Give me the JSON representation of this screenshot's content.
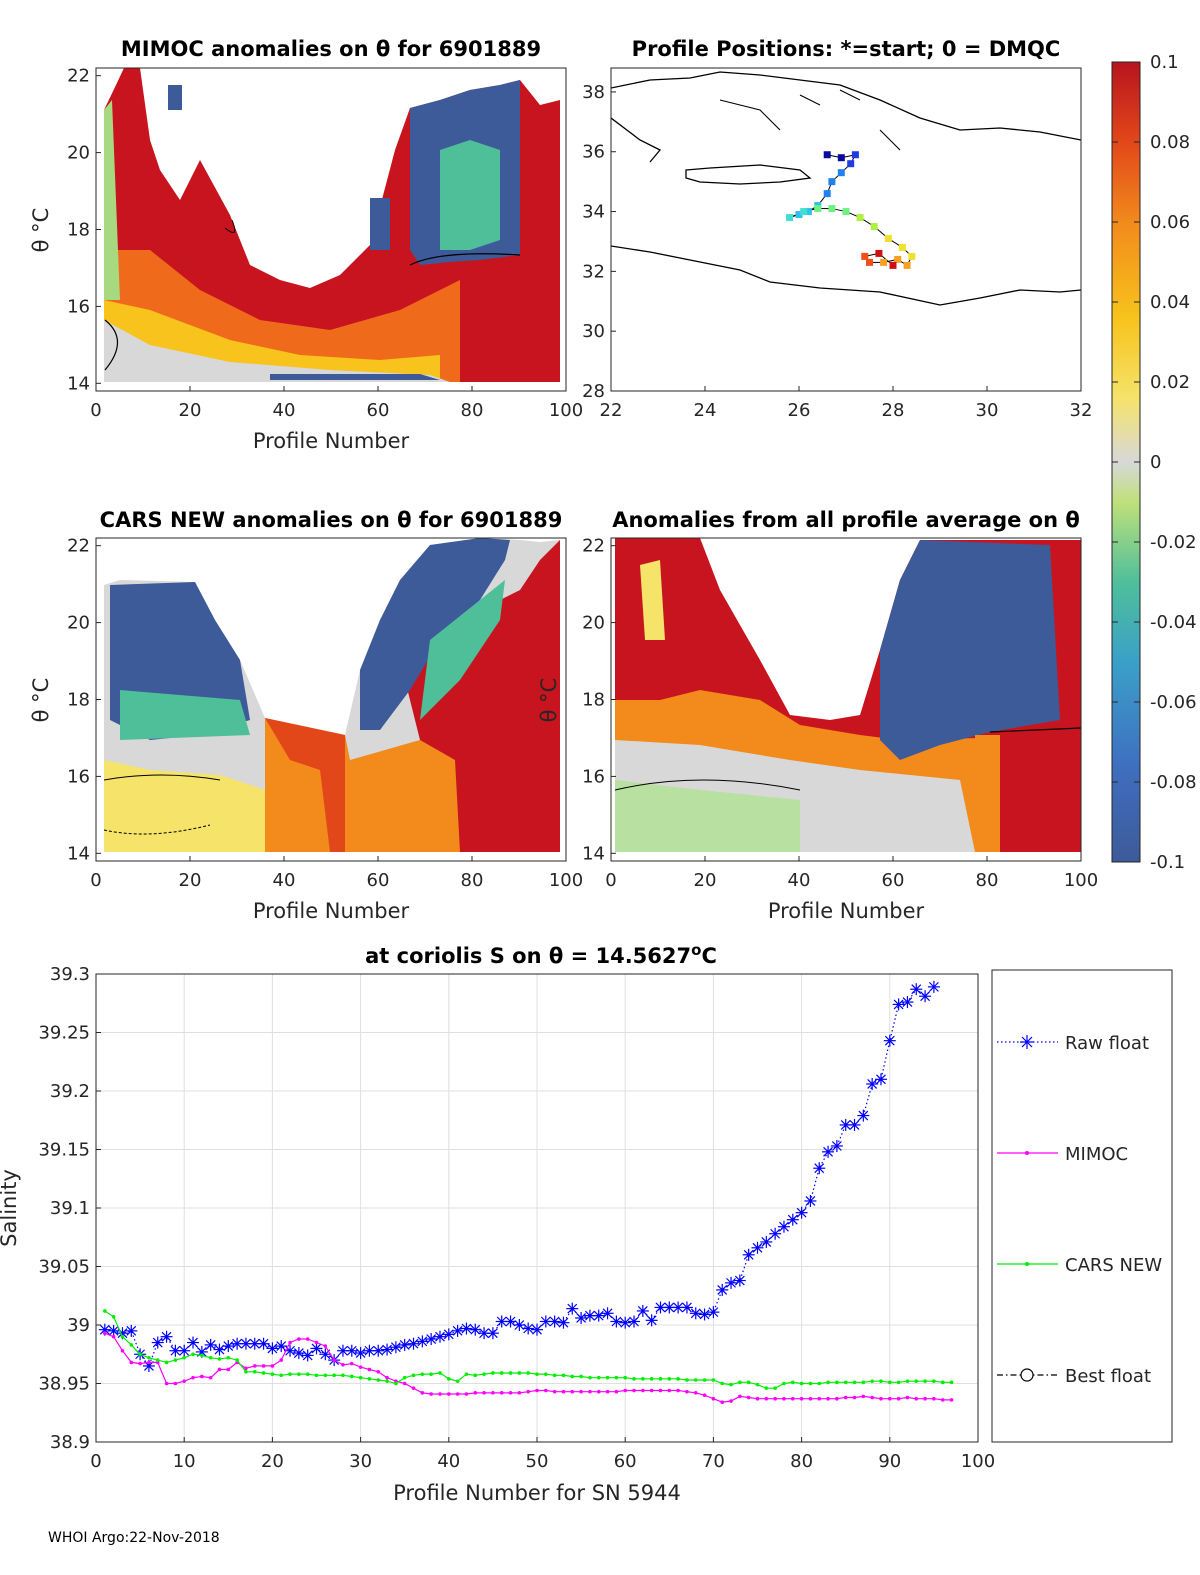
{
  "footer": "WHOI Argo:22-Nov-2018",
  "panels": {
    "mimoc": {
      "title": "MIMOC anomalies on θ  for 6901889",
      "xlabel": "Profile Number",
      "ylabel": "θ °C"
    },
    "positions": {
      "title": "Profile Positions: *=start; 0 = DMQC"
    },
    "cars": {
      "title": "CARS NEW anomalies on θ for 6901889",
      "xlabel": "Profile Number",
      "ylabel": "θ °C"
    },
    "avg": {
      "title": "Anomalies from all profile average on θ",
      "xlabel": "Profile Number",
      "ylabel": "θ °C"
    }
  },
  "colorbar": {
    "ticks": [
      "0.1",
      "0.08",
      "0.06",
      "0.04",
      "0.02",
      "0",
      "-0.02",
      "-0.04",
      "-0.06",
      "-0.08",
      "-0.1"
    ]
  },
  "chart_data": [
    {
      "type": "heatmap",
      "title": "MIMOC anomalies on θ  for 6901889",
      "xlabel": "Profile Number",
      "ylabel": "θ °C",
      "xlim": [
        0,
        100
      ],
      "ylim": [
        13.8,
        22.2
      ],
      "xticks": [
        0,
        20,
        40,
        60,
        80,
        100
      ],
      "yticks": [
        14,
        16,
        18,
        20,
        22
      ],
      "clim": [
        -0.1,
        0.1
      ]
    },
    {
      "type": "scatter",
      "title": "Profile Positions: *=start; 0 = DMQC",
      "xlim": [
        22,
        32
      ],
      "ylim": [
        28,
        38.8
      ],
      "xticks": [
        22,
        24,
        26,
        28,
        30,
        32
      ],
      "yticks": [
        28,
        30,
        32,
        34,
        36,
        38
      ],
      "track": [
        [
          26.6,
          35.9
        ],
        [
          26.9,
          35.8
        ],
        [
          27.2,
          35.9
        ],
        [
          27.1,
          35.6
        ],
        [
          26.9,
          35.3
        ],
        [
          26.7,
          35.0
        ],
        [
          26.6,
          34.6
        ],
        [
          26.4,
          34.2
        ],
        [
          26.2,
          34.0
        ],
        [
          26.0,
          33.9
        ],
        [
          25.8,
          33.8
        ],
        [
          26.1,
          34.0
        ],
        [
          26.4,
          34.1
        ],
        [
          26.7,
          34.1
        ],
        [
          27.0,
          34.0
        ],
        [
          27.3,
          33.8
        ],
        [
          27.6,
          33.5
        ],
        [
          27.9,
          33.1
        ],
        [
          28.2,
          32.8
        ],
        [
          28.4,
          32.5
        ],
        [
          28.3,
          32.2
        ],
        [
          28.1,
          32.4
        ],
        [
          27.8,
          32.3
        ],
        [
          27.5,
          32.3
        ],
        [
          27.4,
          32.5
        ],
        [
          27.7,
          32.6
        ],
        [
          28.0,
          32.2
        ]
      ]
    },
    {
      "type": "heatmap",
      "title": "CARS NEW anomalies on θ for 6901889",
      "xlabel": "Profile Number",
      "ylabel": "θ °C",
      "xlim": [
        0,
        100
      ],
      "ylim": [
        13.8,
        22.2
      ],
      "xticks": [
        0,
        20,
        40,
        60,
        80,
        100
      ],
      "yticks": [
        14,
        16,
        18,
        20,
        22
      ]
    },
    {
      "type": "heatmap",
      "title": "Anomalies from all profile average on θ",
      "xlabel": "Profile Number",
      "ylabel": "θ °C",
      "xlim": [
        0,
        100
      ],
      "ylim": [
        13.8,
        22.2
      ],
      "xticks": [
        0,
        20,
        40,
        60,
        80,
        100
      ],
      "yticks": [
        14,
        16,
        18,
        20,
        22
      ]
    },
    {
      "type": "line",
      "title": "at coriolis S on θ = 14.5627°C",
      "xlabel": "Profile Number for SN 5944",
      "ylabel": "Salinity",
      "xlim": [
        0,
        100
      ],
      "ylim": [
        38.9,
        39.3
      ],
      "xticks": [
        0,
        10,
        20,
        30,
        40,
        50,
        60,
        70,
        80,
        90,
        100
      ],
      "yticks": [
        38.9,
        38.95,
        39,
        39.05,
        39.1,
        39.15,
        39.2,
        39.25,
        39.3
      ],
      "legend": [
        "Raw float",
        "MIMOC",
        "CARS NEW",
        "Best float"
      ],
      "series": [
        {
          "name": "Raw float",
          "color": "#0000ff",
          "marker": "*",
          "style": "dotted",
          "values": [
            38.996,
            38.995,
            38.993,
            38.995,
            38.975,
            38.965,
            38.985,
            38.99,
            38.978,
            38.978,
            38.985,
            38.977,
            38.983,
            38.979,
            38.982,
            38.984,
            38.984,
            38.984,
            38.984,
            38.98,
            38.982,
            38.978,
            38.976,
            38.974,
            38.98,
            38.975,
            38.97,
            38.978,
            38.978,
            38.976,
            38.978,
            38.978,
            38.979,
            38.981,
            38.983,
            38.984,
            38.986,
            38.988,
            38.99,
            38.992,
            38.995,
            38.997,
            38.996,
            38.993,
            38.993,
            39.003,
            39.003,
            39.0,
            38.997,
            38.996,
            39.003,
            39.003,
            39.002,
            39.014,
            39.006,
            39.008,
            39.008,
            39.01,
            39.003,
            39.002,
            39.003,
            39.012,
            39.004,
            39.015,
            39.015,
            39.015,
            39.015,
            39.01,
            39.009,
            39.011,
            39.03,
            39.036,
            39.038,
            39.06,
            39.066,
            39.071,
            39.078,
            39.084,
            39.09,
            39.096,
            39.106,
            39.134,
            39.148,
            39.153,
            39.171,
            39.171,
            39.179,
            39.206,
            39.21,
            39.243,
            39.274,
            39.276,
            39.287,
            39.281,
            39.289
          ]
        },
        {
          "name": "MIMOC",
          "color": "#ff00ff",
          "marker": ".",
          "style": "solid",
          "values": [
            38.993,
            38.99,
            38.978,
            38.968,
            38.967,
            38.968,
            38.968,
            38.95,
            38.95,
            38.952,
            38.955,
            38.956,
            38.955,
            38.962,
            38.962,
            38.968,
            38.963,
            38.965,
            38.965,
            38.965,
            38.97,
            38.985,
            38.988,
            38.988,
            38.985,
            38.982,
            38.97,
            38.966,
            38.967,
            38.964,
            38.962,
            38.96,
            38.955,
            38.952,
            38.95,
            38.946,
            38.942,
            38.941,
            38.941,
            38.941,
            38.941,
            38.941,
            38.942,
            38.942,
            38.942,
            38.942,
            38.942,
            38.942,
            38.943,
            38.944,
            38.944,
            38.943,
            38.943,
            38.943,
            38.943,
            38.943,
            38.943,
            38.943,
            38.943,
            38.944,
            38.944,
            38.944,
            38.944,
            38.944,
            38.944,
            38.944,
            38.943,
            38.942,
            38.94,
            38.937,
            38.934,
            38.935,
            38.939,
            38.938,
            38.937,
            38.937,
            38.937,
            38.937,
            38.937,
            38.937,
            38.937,
            38.937,
            38.937,
            38.937,
            38.938,
            38.938,
            38.939,
            38.938,
            38.937,
            38.937,
            38.937,
            38.938,
            38.937,
            38.937,
            38.937,
            38.936,
            38.936
          ]
        },
        {
          "name": "CARS NEW",
          "color": "#00ee00",
          "marker": ".",
          "style": "solid",
          "values": [
            39.012,
            39.007,
            38.99,
            38.983,
            38.975,
            38.972,
            38.97,
            38.968,
            38.97,
            38.972,
            38.975,
            38.974,
            38.972,
            38.971,
            38.972,
            38.97,
            38.96,
            38.96,
            38.959,
            38.958,
            38.957,
            38.958,
            38.958,
            38.958,
            38.957,
            38.957,
            38.957,
            38.957,
            38.956,
            38.955,
            38.954,
            38.953,
            38.952,
            38.95,
            38.955,
            38.957,
            38.958,
            38.958,
            38.959,
            38.954,
            38.952,
            38.958,
            38.957,
            38.958,
            38.959,
            38.959,
            38.959,
            38.959,
            38.959,
            38.958,
            38.958,
            38.957,
            38.957,
            38.956,
            38.956,
            38.955,
            38.955,
            38.955,
            38.955,
            38.955,
            38.954,
            38.954,
            38.954,
            38.954,
            38.954,
            38.954,
            38.953,
            38.953,
            38.953,
            38.953,
            38.95,
            38.949,
            38.951,
            38.951,
            38.949,
            38.946,
            38.946,
            38.95,
            38.951,
            38.95,
            38.95,
            38.95,
            38.951,
            38.951,
            38.951,
            38.951,
            38.951,
            38.952,
            38.952,
            38.951,
            38.951,
            38.952,
            38.952,
            38.952,
            38.952,
            38.951,
            38.951
          ]
        },
        {
          "name": "Best float",
          "color": "#000000",
          "marker": "o",
          "style": "dash-dot",
          "values": []
        }
      ]
    }
  ]
}
